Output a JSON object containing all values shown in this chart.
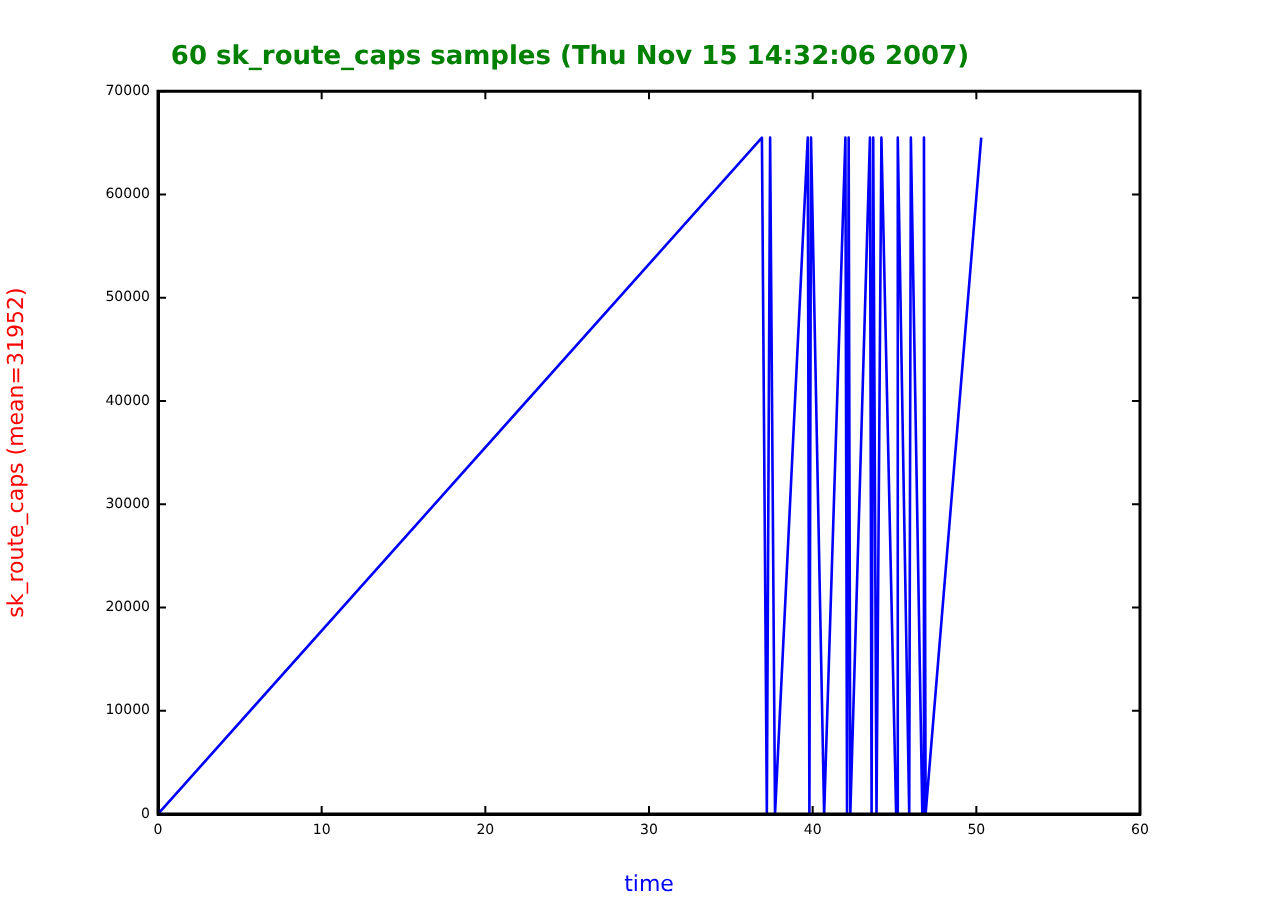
{
  "chart_data": {
    "type": "line",
    "title": "60 sk_route_caps samples (Thu Nov 15 14:32:06 2007)",
    "xlabel": "time",
    "ylabel": "sk_route_caps (mean=31952)",
    "x": [
      0,
      36.9,
      37.2,
      37.4,
      37.7,
      39.7,
      39.8,
      39.9,
      40.7,
      42.0,
      42.1,
      42.2,
      42.3,
      43.5,
      43.6,
      43.7,
      43.9,
      44.2,
      45.1,
      45.2,
      45.9,
      46.0,
      46.7,
      46.8,
      46.9,
      50.3
    ],
    "series": [
      {
        "color": "#0000ff",
        "values": [
          0,
          65500,
          0,
          65500,
          0,
          65500,
          0,
          65500,
          0,
          65500,
          0,
          65500,
          0,
          65500,
          0,
          65500,
          0,
          65500,
          0,
          65500,
          0,
          65500,
          0,
          65500,
          0,
          65500
        ]
      }
    ],
    "xlim": [
      0,
      60
    ],
    "xticks": [
      0,
      10,
      20,
      30,
      40,
      50,
      60
    ],
    "ylim": [
      0,
      70000
    ],
    "yticks": [
      0,
      10000,
      20000,
      30000,
      40000,
      50000,
      60000,
      70000
    ],
    "grid": false,
    "legend": false,
    "marker": "none",
    "line_style": "solid"
  }
}
